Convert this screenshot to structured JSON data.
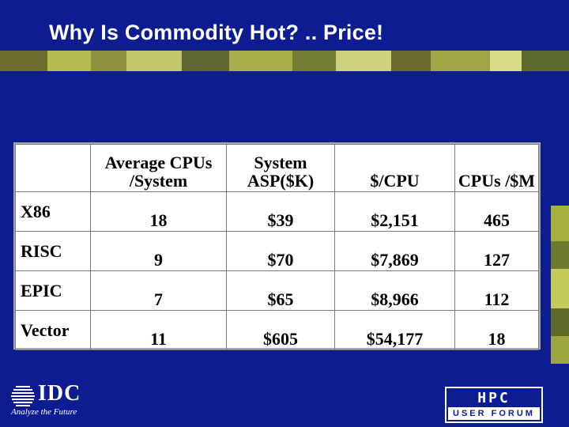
{
  "slide": {
    "title": "Why Is Commodity Hot? .. Price!"
  },
  "table": {
    "headers": [
      "",
      "Average CPUs /System",
      "System ASP($K)",
      "$/CPU",
      "CPUs /$M"
    ],
    "rows": [
      {
        "label": "X86",
        "cells": [
          "18",
          "$39",
          "$2,151",
          "465"
        ]
      },
      {
        "label": "RISC",
        "cells": [
          "9",
          "$70",
          "$7,869",
          "127"
        ]
      },
      {
        "label": "EPIC",
        "cells": [
          "7",
          "$65",
          "$8,966",
          "112"
        ]
      },
      {
        "label": "Vector",
        "cells": [
          "11",
          "$605",
          "$54,177",
          "18"
        ]
      }
    ]
  },
  "footer": {
    "idc_logo_text": "IDC",
    "idc_tagline": "Analyze the Future",
    "hpc_logo_top": "HPC",
    "hpc_logo_bottom": "USER FORUM"
  },
  "colors": {
    "background": "#0d1d91",
    "strip": [
      "#6e6a2c",
      "#8c8a3a",
      "#b9bf55",
      "#5f6a30",
      "#a2a743",
      "#d1d97c",
      "#6f7b2e",
      "#c4c76a"
    ]
  }
}
